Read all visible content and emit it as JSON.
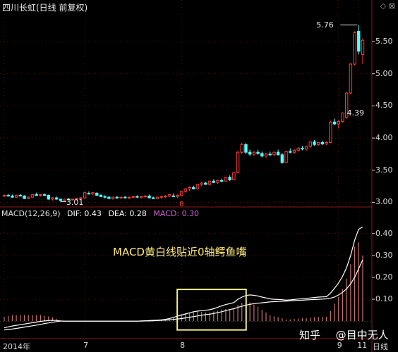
{
  "header": {
    "title": "四川长虹(日线 前复权)",
    "controls": "◇ ⊠"
  },
  "macd_header": {
    "params": "MACD(12,26,9)",
    "dif": "DIF: 0.43",
    "dea": "DEA: 0.28",
    "macd": "MACD: 0.30"
  },
  "annotation": "MACD黄白线贴近0轴鳄鱼嘴",
  "watermark": {
    "brand": "知乎",
    "author": "@目中无人"
  },
  "marker_label": "8",
  "colors": {
    "up": "#ff3b3b",
    "down": "#54ffff",
    "dif_line": "#ffffff",
    "dea_line": "#ffffff",
    "hist_pos": "#c87070",
    "hist_neg": "#54ffff",
    "grid": "#8a1a1a",
    "highlight_box": "#f4ec8a",
    "annotation": "#ffe97a"
  },
  "chart_data": [
    {
      "type": "candlestick",
      "title": "四川长虹(日线 前复权)",
      "price_labels": [
        {
          "text": "5.76",
          "value": 5.76
        },
        {
          "text": "3.01",
          "value": 3.01
        },
        {
          "text": "4.39",
          "value": 4.39
        }
      ],
      "y_ticks": [
        {
          "text": "5.50",
          "value": 5.5
        },
        {
          "text": "5.00",
          "value": 5.0
        },
        {
          "text": "4.50",
          "value": 4.5
        },
        {
          "text": "4.00",
          "value": 4.0
        },
        {
          "text": "3.50",
          "value": 3.5
        },
        {
          "text": "3.00",
          "value": 3.0
        }
      ],
      "ylim": [
        2.95,
        5.95
      ],
      "candles": [
        [
          3.1,
          3.12,
          3.08,
          3.11
        ],
        [
          3.11,
          3.13,
          3.09,
          3.1
        ],
        [
          3.1,
          3.12,
          3.07,
          3.08
        ],
        [
          3.08,
          3.12,
          3.07,
          3.11
        ],
        [
          3.11,
          3.13,
          3.09,
          3.1
        ],
        [
          3.1,
          3.11,
          3.05,
          3.06
        ],
        [
          3.06,
          3.09,
          3.05,
          3.08
        ],
        [
          3.08,
          3.13,
          3.07,
          3.12
        ],
        [
          3.12,
          3.15,
          3.1,
          3.11
        ],
        [
          3.11,
          3.13,
          3.09,
          3.12
        ],
        [
          3.12,
          3.14,
          3.1,
          3.11
        ],
        [
          3.11,
          3.12,
          3.04,
          3.05
        ],
        [
          3.05,
          3.08,
          3.03,
          3.07
        ],
        [
          3.07,
          3.09,
          3.04,
          3.05
        ],
        [
          3.05,
          3.06,
          3.01,
          3.03
        ],
        [
          3.03,
          3.06,
          3.02,
          3.05
        ],
        [
          3.05,
          3.07,
          3.03,
          3.04
        ],
        [
          3.04,
          3.06,
          3.02,
          3.05
        ],
        [
          3.05,
          3.07,
          3.03,
          3.06
        ],
        [
          3.06,
          3.08,
          3.04,
          3.07
        ],
        [
          3.07,
          3.17,
          3.05,
          3.15
        ],
        [
          3.14,
          3.17,
          3.12,
          3.13
        ],
        [
          3.13,
          3.16,
          3.11,
          3.15
        ],
        [
          3.14,
          3.16,
          3.1,
          3.11
        ],
        [
          3.11,
          3.13,
          3.08,
          3.09
        ],
        [
          3.09,
          3.11,
          3.06,
          3.08
        ],
        [
          3.08,
          3.1,
          3.05,
          3.06
        ],
        [
          3.06,
          3.09,
          3.04,
          3.08
        ],
        [
          3.08,
          3.1,
          3.05,
          3.07
        ],
        [
          3.07,
          3.09,
          3.05,
          3.08
        ],
        [
          3.08,
          3.1,
          3.06,
          3.07
        ],
        [
          3.07,
          3.09,
          3.05,
          3.08
        ],
        [
          3.08,
          3.1,
          3.06,
          3.09
        ],
        [
          3.09,
          3.11,
          3.07,
          3.08
        ],
        [
          3.08,
          3.1,
          3.06,
          3.09
        ],
        [
          3.09,
          3.11,
          3.07,
          3.1
        ],
        [
          3.1,
          3.12,
          3.06,
          3.07
        ],
        [
          3.07,
          3.09,
          3.05,
          3.06
        ],
        [
          3.06,
          3.09,
          3.05,
          3.08
        ],
        [
          3.08,
          3.1,
          3.06,
          3.09
        ],
        [
          3.09,
          3.11,
          3.07,
          3.1
        ],
        [
          3.1,
          3.13,
          3.08,
          3.12
        ],
        [
          3.1,
          3.14,
          3.08,
          3.09
        ],
        [
          3.09,
          3.12,
          3.07,
          3.11
        ],
        [
          3.11,
          3.18,
          3.1,
          3.17
        ],
        [
          3.17,
          3.22,
          3.15,
          3.21
        ],
        [
          3.21,
          3.25,
          3.18,
          3.23
        ],
        [
          3.23,
          3.26,
          3.2,
          3.21
        ],
        [
          3.21,
          3.29,
          3.2,
          3.28
        ],
        [
          3.28,
          3.32,
          3.25,
          3.3
        ],
        [
          3.3,
          3.32,
          3.27,
          3.28
        ],
        [
          3.28,
          3.34,
          3.26,
          3.33
        ],
        [
          3.33,
          3.36,
          3.3,
          3.31
        ],
        [
          3.31,
          3.35,
          3.29,
          3.34
        ],
        [
          3.34,
          3.37,
          3.31,
          3.33
        ],
        [
          3.33,
          3.4,
          3.32,
          3.39
        ],
        [
          3.39,
          3.42,
          3.33,
          3.35
        ],
        [
          3.35,
          3.47,
          3.34,
          3.46
        ],
        [
          3.46,
          3.8,
          3.45,
          3.78
        ],
        [
          3.78,
          3.93,
          3.75,
          3.9
        ],
        [
          3.9,
          3.92,
          3.75,
          3.78
        ],
        [
          3.78,
          3.82,
          3.72,
          3.75
        ],
        [
          3.75,
          3.8,
          3.72,
          3.78
        ],
        [
          3.78,
          3.82,
          3.74,
          3.76
        ],
        [
          3.76,
          3.79,
          3.7,
          3.72
        ],
        [
          3.72,
          3.77,
          3.69,
          3.75
        ],
        [
          3.75,
          3.79,
          3.72,
          3.74
        ],
        [
          3.74,
          3.79,
          3.72,
          3.78
        ],
        [
          3.78,
          3.82,
          3.73,
          3.74
        ],
        [
          3.74,
          3.77,
          3.6,
          3.62
        ],
        [
          3.62,
          3.8,
          3.61,
          3.79
        ],
        [
          3.79,
          3.84,
          3.76,
          3.78
        ],
        [
          3.78,
          3.83,
          3.75,
          3.81
        ],
        [
          3.81,
          3.86,
          3.79,
          3.84
        ],
        [
          3.84,
          3.88,
          3.81,
          3.83
        ],
        [
          3.83,
          3.88,
          3.8,
          3.87
        ],
        [
          3.87,
          3.95,
          3.85,
          3.94
        ],
        [
          3.94,
          3.97,
          3.88,
          3.9
        ],
        [
          3.9,
          3.94,
          3.88,
          3.93
        ],
        [
          3.93,
          3.96,
          3.89,
          3.91
        ],
        [
          3.91,
          3.95,
          3.89,
          3.93
        ],
        [
          3.93,
          4.27,
          3.92,
          4.25
        ],
        [
          4.25,
          4.3,
          4.2,
          4.22
        ],
        [
          4.22,
          4.28,
          4.15,
          4.26
        ],
        [
          4.26,
          4.4,
          4.24,
          4.39
        ],
        [
          4.32,
          4.72,
          4.3,
          4.7
        ],
        [
          4.7,
          5.17,
          4.68,
          5.15
        ],
        [
          5.15,
          5.66,
          5.13,
          5.64
        ],
        [
          5.66,
          5.76,
          5.3,
          5.35
        ],
        [
          5.3,
          5.55,
          5.15,
          5.52
        ]
      ],
      "indicator": {
        "name": "MACD(12,26,9)",
        "dif_latest": 0.43,
        "dea_latest": 0.28,
        "macd_latest": 0.3,
        "y_ticks": [
          {
            "text": "0.40",
            "value": 0.4
          },
          {
            "text": "0.30",
            "value": 0.3
          },
          {
            "text": "0.20",
            "value": 0.2
          },
          {
            "text": "0.10",
            "value": 0.1
          }
        ],
        "ylim": [
          -0.07,
          0.47
        ],
        "dif": [
          -0.03,
          -0.026,
          -0.022,
          -0.019,
          -0.016,
          -0.013,
          -0.01,
          -0.007,
          -0.004,
          -0.001,
          0.001,
          0.003,
          0.004,
          0.003,
          0.001,
          0.0,
          0.0,
          0.0,
          0.0,
          0.0,
          0.0,
          0.0,
          0.0,
          0.0,
          0.0,
          0.0,
          0.0,
          0.0,
          0.0,
          0.0,
          0.0,
          0.0,
          0.0,
          0.0,
          0.001,
          0.002,
          0.003,
          0.004,
          0.005,
          0.006,
          0.008,
          0.012,
          0.017,
          0.023,
          0.028,
          0.033,
          0.038,
          0.043,
          0.046,
          0.048,
          0.05,
          0.052,
          0.057,
          0.063,
          0.07,
          0.076,
          0.08,
          0.085,
          0.1,
          0.11,
          0.117,
          0.12,
          0.118,
          0.115,
          0.11,
          0.106,
          0.102,
          0.1,
          0.099,
          0.098,
          0.096,
          0.097,
          0.099,
          0.101,
          0.103,
          0.104,
          0.106,
          0.108,
          0.11,
          0.111,
          0.112,
          0.128,
          0.15,
          0.175,
          0.205,
          0.245,
          0.3,
          0.37,
          0.42,
          0.43
        ],
        "dea": [
          -0.04,
          -0.038,
          -0.036,
          -0.033,
          -0.03,
          -0.027,
          -0.024,
          -0.021,
          -0.018,
          -0.015,
          -0.011,
          -0.008,
          -0.005,
          -0.002,
          0.0,
          0.0,
          0.0,
          0.0,
          0.0,
          0.0,
          0.0,
          0.0,
          0.0,
          0.0,
          0.0,
          0.0,
          0.0,
          0.0,
          0.0,
          0.0,
          0.0,
          0.0,
          0.0,
          0.0,
          0.0,
          0.001,
          0.001,
          0.002,
          0.003,
          0.004,
          0.005,
          0.006,
          0.008,
          0.01,
          0.012,
          0.015,
          0.018,
          0.021,
          0.024,
          0.027,
          0.03,
          0.032,
          0.035,
          0.039,
          0.043,
          0.048,
          0.053,
          0.057,
          0.063,
          0.068,
          0.073,
          0.077,
          0.08,
          0.082,
          0.084,
          0.086,
          0.088,
          0.089,
          0.09,
          0.091,
          0.092,
          0.093,
          0.094,
          0.095,
          0.096,
          0.097,
          0.098,
          0.099,
          0.1,
          0.101,
          0.102,
          0.105,
          0.11,
          0.12,
          0.132,
          0.148,
          0.17,
          0.2,
          0.24,
          0.28
        ]
      },
      "x_ticks": [
        {
          "text": "2014年",
          "index": 0
        },
        {
          "text": "7",
          "index": 20
        },
        {
          "text": "8",
          "index": 44
        },
        {
          "text": "9",
          "index": 83
        },
        {
          "text": "11",
          "index": 88
        }
      ],
      "x_unit_label": "日线"
    }
  ]
}
